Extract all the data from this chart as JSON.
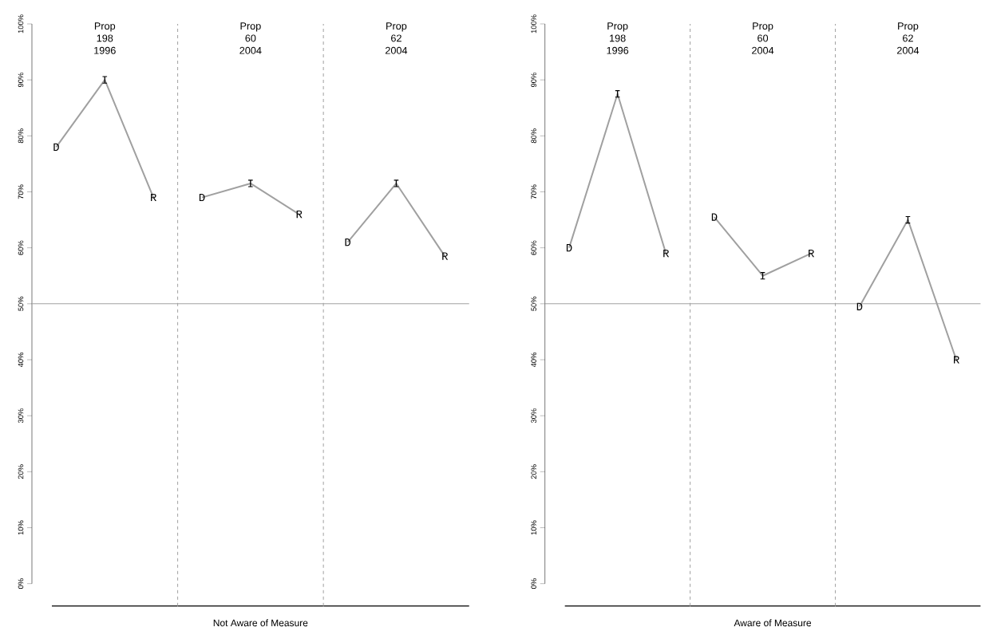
{
  "chart_data": [
    {
      "type": "line",
      "xlabel": "Not Aware of Measure",
      "categories": [
        null,
        null,
        null,
        null,
        null,
        null,
        null,
        null,
        null
      ],
      "annotations": [
        "Prop 198 1996",
        "Prop 60 2004",
        "Prop 62 2004"
      ],
      "series": [
        {
          "color": "#a0a0a0",
          "values": [
            78,
            90,
            69,
            null,
            null,
            null,
            null,
            null,
            null
          ],
          "value_labels": [
            "D",
            "I",
            "R",
            null,
            null,
            null,
            null,
            null,
            null
          ]
        },
        {
          "color": "#a0a0a0",
          "values": [
            null,
            null,
            null,
            69,
            71.5,
            66,
            null,
            null,
            null
          ],
          "value_labels": [
            null,
            null,
            null,
            "D",
            "I",
            "R",
            null,
            null,
            null
          ]
        },
        {
          "color": "#a0a0a0",
          "values": [
            null,
            null,
            null,
            null,
            null,
            null,
            61,
            71.5,
            58.5
          ],
          "value_labels": [
            null,
            null,
            null,
            null,
            null,
            null,
            "D",
            "I",
            "R"
          ]
        }
      ],
      "ylim": [
        0,
        100
      ],
      "yticks": [
        {
          "value": 0,
          "label": "0%"
        },
        {
          "value": 10,
          "label": "10%"
        },
        {
          "value": 20,
          "label": "20%"
        },
        {
          "value": 30,
          "label": "30%"
        },
        {
          "value": 40,
          "label": "40%"
        },
        {
          "value": 50,
          "label": "50%"
        },
        {
          "value": 60,
          "label": "60%"
        },
        {
          "value": 70,
          "label": "70%"
        },
        {
          "value": 80,
          "label": "80%"
        },
        {
          "value": 90,
          "label": "90%"
        },
        {
          "value": 100,
          "label": "100%"
        }
      ],
      "ref_lines": [
        {
          "axis": "y",
          "value": 50,
          "color": "#a0a0a0",
          "line_style": "solid"
        }
      ]
    },
    {
      "type": "line",
      "xlabel": "Aware of Measure",
      "categories": [
        null,
        null,
        null,
        null,
        null,
        null,
        null,
        null,
        null
      ],
      "annotations": [
        "Prop 198 1996",
        "Prop 60 2004",
        "Prop 62 2004"
      ],
      "series": [
        {
          "color": "#a0a0a0",
          "values": [
            60,
            87.5,
            59,
            null,
            null,
            null,
            null,
            null,
            null
          ],
          "value_labels": [
            "D",
            "I",
            "R",
            null,
            null,
            null,
            null,
            null,
            null
          ]
        },
        {
          "color": "#a0a0a0",
          "values": [
            null,
            null,
            null,
            65.5,
            55,
            59,
            null,
            null,
            null
          ],
          "value_labels": [
            null,
            null,
            null,
            "D",
            "I",
            "R",
            null,
            null,
            null
          ]
        },
        {
          "color": "#a0a0a0",
          "values": [
            null,
            null,
            null,
            null,
            null,
            null,
            49.5,
            65,
            40
          ],
          "value_labels": [
            null,
            null,
            null,
            null,
            null,
            null,
            "D",
            "I",
            "R"
          ]
        }
      ],
      "ylim": [
        0,
        100
      ],
      "yticks": [
        {
          "value": 0,
          "label": "0%"
        },
        {
          "value": 10,
          "label": "10%"
        },
        {
          "value": 20,
          "label": "20%"
        },
        {
          "value": 30,
          "label": "30%"
        },
        {
          "value": 40,
          "label": "40%"
        },
        {
          "value": 50,
          "label": "50%"
        },
        {
          "value": 60,
          "label": "60%"
        },
        {
          "value": 70,
          "label": "70%"
        },
        {
          "value": 80,
          "label": "80%"
        },
        {
          "value": 90,
          "label": "90%"
        },
        {
          "value": 100,
          "label": "100%"
        }
      ],
      "ref_lines": [
        {
          "axis": "y",
          "value": 50,
          "color": "#a0a0a0",
          "line_style": "solid"
        }
      ]
    }
  ]
}
